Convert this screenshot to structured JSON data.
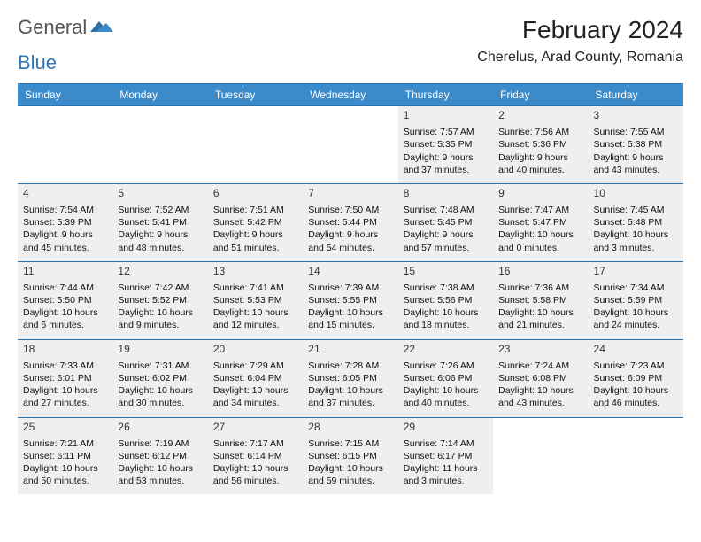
{
  "logo": {
    "text1": "General",
    "text2": "Blue"
  },
  "title": "February 2024",
  "location": "Cherelus, Arad County, Romania",
  "colors": {
    "header_bg": "#3b8aca",
    "header_border": "#2e6fa5",
    "day_bg": "#efefef",
    "logo_blue": "#3277b3"
  },
  "weekdays": [
    "Sunday",
    "Monday",
    "Tuesday",
    "Wednesday",
    "Thursday",
    "Friday",
    "Saturday"
  ],
  "weeks": [
    [
      null,
      null,
      null,
      null,
      {
        "n": "1",
        "sr": "7:57 AM",
        "ss": "5:35 PM",
        "dl": "9 hours and 37 minutes."
      },
      {
        "n": "2",
        "sr": "7:56 AM",
        "ss": "5:36 PM",
        "dl": "9 hours and 40 minutes."
      },
      {
        "n": "3",
        "sr": "7:55 AM",
        "ss": "5:38 PM",
        "dl": "9 hours and 43 minutes."
      }
    ],
    [
      {
        "n": "4",
        "sr": "7:54 AM",
        "ss": "5:39 PM",
        "dl": "9 hours and 45 minutes."
      },
      {
        "n": "5",
        "sr": "7:52 AM",
        "ss": "5:41 PM",
        "dl": "9 hours and 48 minutes."
      },
      {
        "n": "6",
        "sr": "7:51 AM",
        "ss": "5:42 PM",
        "dl": "9 hours and 51 minutes."
      },
      {
        "n": "7",
        "sr": "7:50 AM",
        "ss": "5:44 PM",
        "dl": "9 hours and 54 minutes."
      },
      {
        "n": "8",
        "sr": "7:48 AM",
        "ss": "5:45 PM",
        "dl": "9 hours and 57 minutes."
      },
      {
        "n": "9",
        "sr": "7:47 AM",
        "ss": "5:47 PM",
        "dl": "10 hours and 0 minutes."
      },
      {
        "n": "10",
        "sr": "7:45 AM",
        "ss": "5:48 PM",
        "dl": "10 hours and 3 minutes."
      }
    ],
    [
      {
        "n": "11",
        "sr": "7:44 AM",
        "ss": "5:50 PM",
        "dl": "10 hours and 6 minutes."
      },
      {
        "n": "12",
        "sr": "7:42 AM",
        "ss": "5:52 PM",
        "dl": "10 hours and 9 minutes."
      },
      {
        "n": "13",
        "sr": "7:41 AM",
        "ss": "5:53 PM",
        "dl": "10 hours and 12 minutes."
      },
      {
        "n": "14",
        "sr": "7:39 AM",
        "ss": "5:55 PM",
        "dl": "10 hours and 15 minutes."
      },
      {
        "n": "15",
        "sr": "7:38 AM",
        "ss": "5:56 PM",
        "dl": "10 hours and 18 minutes."
      },
      {
        "n": "16",
        "sr": "7:36 AM",
        "ss": "5:58 PM",
        "dl": "10 hours and 21 minutes."
      },
      {
        "n": "17",
        "sr": "7:34 AM",
        "ss": "5:59 PM",
        "dl": "10 hours and 24 minutes."
      }
    ],
    [
      {
        "n": "18",
        "sr": "7:33 AM",
        "ss": "6:01 PM",
        "dl": "10 hours and 27 minutes."
      },
      {
        "n": "19",
        "sr": "7:31 AM",
        "ss": "6:02 PM",
        "dl": "10 hours and 30 minutes."
      },
      {
        "n": "20",
        "sr": "7:29 AM",
        "ss": "6:04 PM",
        "dl": "10 hours and 34 minutes."
      },
      {
        "n": "21",
        "sr": "7:28 AM",
        "ss": "6:05 PM",
        "dl": "10 hours and 37 minutes."
      },
      {
        "n": "22",
        "sr": "7:26 AM",
        "ss": "6:06 PM",
        "dl": "10 hours and 40 minutes."
      },
      {
        "n": "23",
        "sr": "7:24 AM",
        "ss": "6:08 PM",
        "dl": "10 hours and 43 minutes."
      },
      {
        "n": "24",
        "sr": "7:23 AM",
        "ss": "6:09 PM",
        "dl": "10 hours and 46 minutes."
      }
    ],
    [
      {
        "n": "25",
        "sr": "7:21 AM",
        "ss": "6:11 PM",
        "dl": "10 hours and 50 minutes."
      },
      {
        "n": "26",
        "sr": "7:19 AM",
        "ss": "6:12 PM",
        "dl": "10 hours and 53 minutes."
      },
      {
        "n": "27",
        "sr": "7:17 AM",
        "ss": "6:14 PM",
        "dl": "10 hours and 56 minutes."
      },
      {
        "n": "28",
        "sr": "7:15 AM",
        "ss": "6:15 PM",
        "dl": "10 hours and 59 minutes."
      },
      {
        "n": "29",
        "sr": "7:14 AM",
        "ss": "6:17 PM",
        "dl": "11 hours and 3 minutes."
      },
      null,
      null
    ]
  ],
  "labels": {
    "sunrise": "Sunrise:",
    "sunset": "Sunset:",
    "daylight": "Daylight:"
  }
}
